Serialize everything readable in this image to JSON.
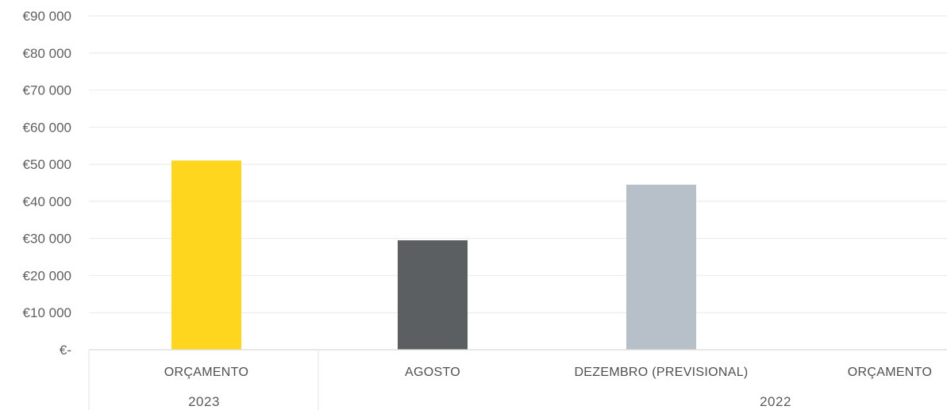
{
  "chart_data": {
    "type": "bar",
    "title": "",
    "xlabel": "",
    "ylabel": "",
    "ylim": [
      0,
      90000
    ],
    "ytick_labels": [
      "€-",
      "€10 000",
      "€20 000",
      "€30 000",
      "€40 000",
      "€50 000",
      "€60 000",
      "€70 000",
      "€80 000",
      "€90 000"
    ],
    "categories": [
      "ORÇAMENTO",
      "AGOSTO",
      "DEZEMBRO (PREVISIONAL)",
      "ORÇAMENTO"
    ],
    "groups": [
      {
        "label": "2023",
        "categories": [
          0
        ]
      },
      {
        "label": "2022",
        "categories": [
          1,
          2,
          3
        ]
      }
    ],
    "values": [
      51000,
      29500,
      44500,
      0
    ],
    "colors": [
      "#ffd61e",
      "#5b5f62",
      "#b7c0c9",
      "#ffffff"
    ],
    "grid": true,
    "legend": "none"
  }
}
